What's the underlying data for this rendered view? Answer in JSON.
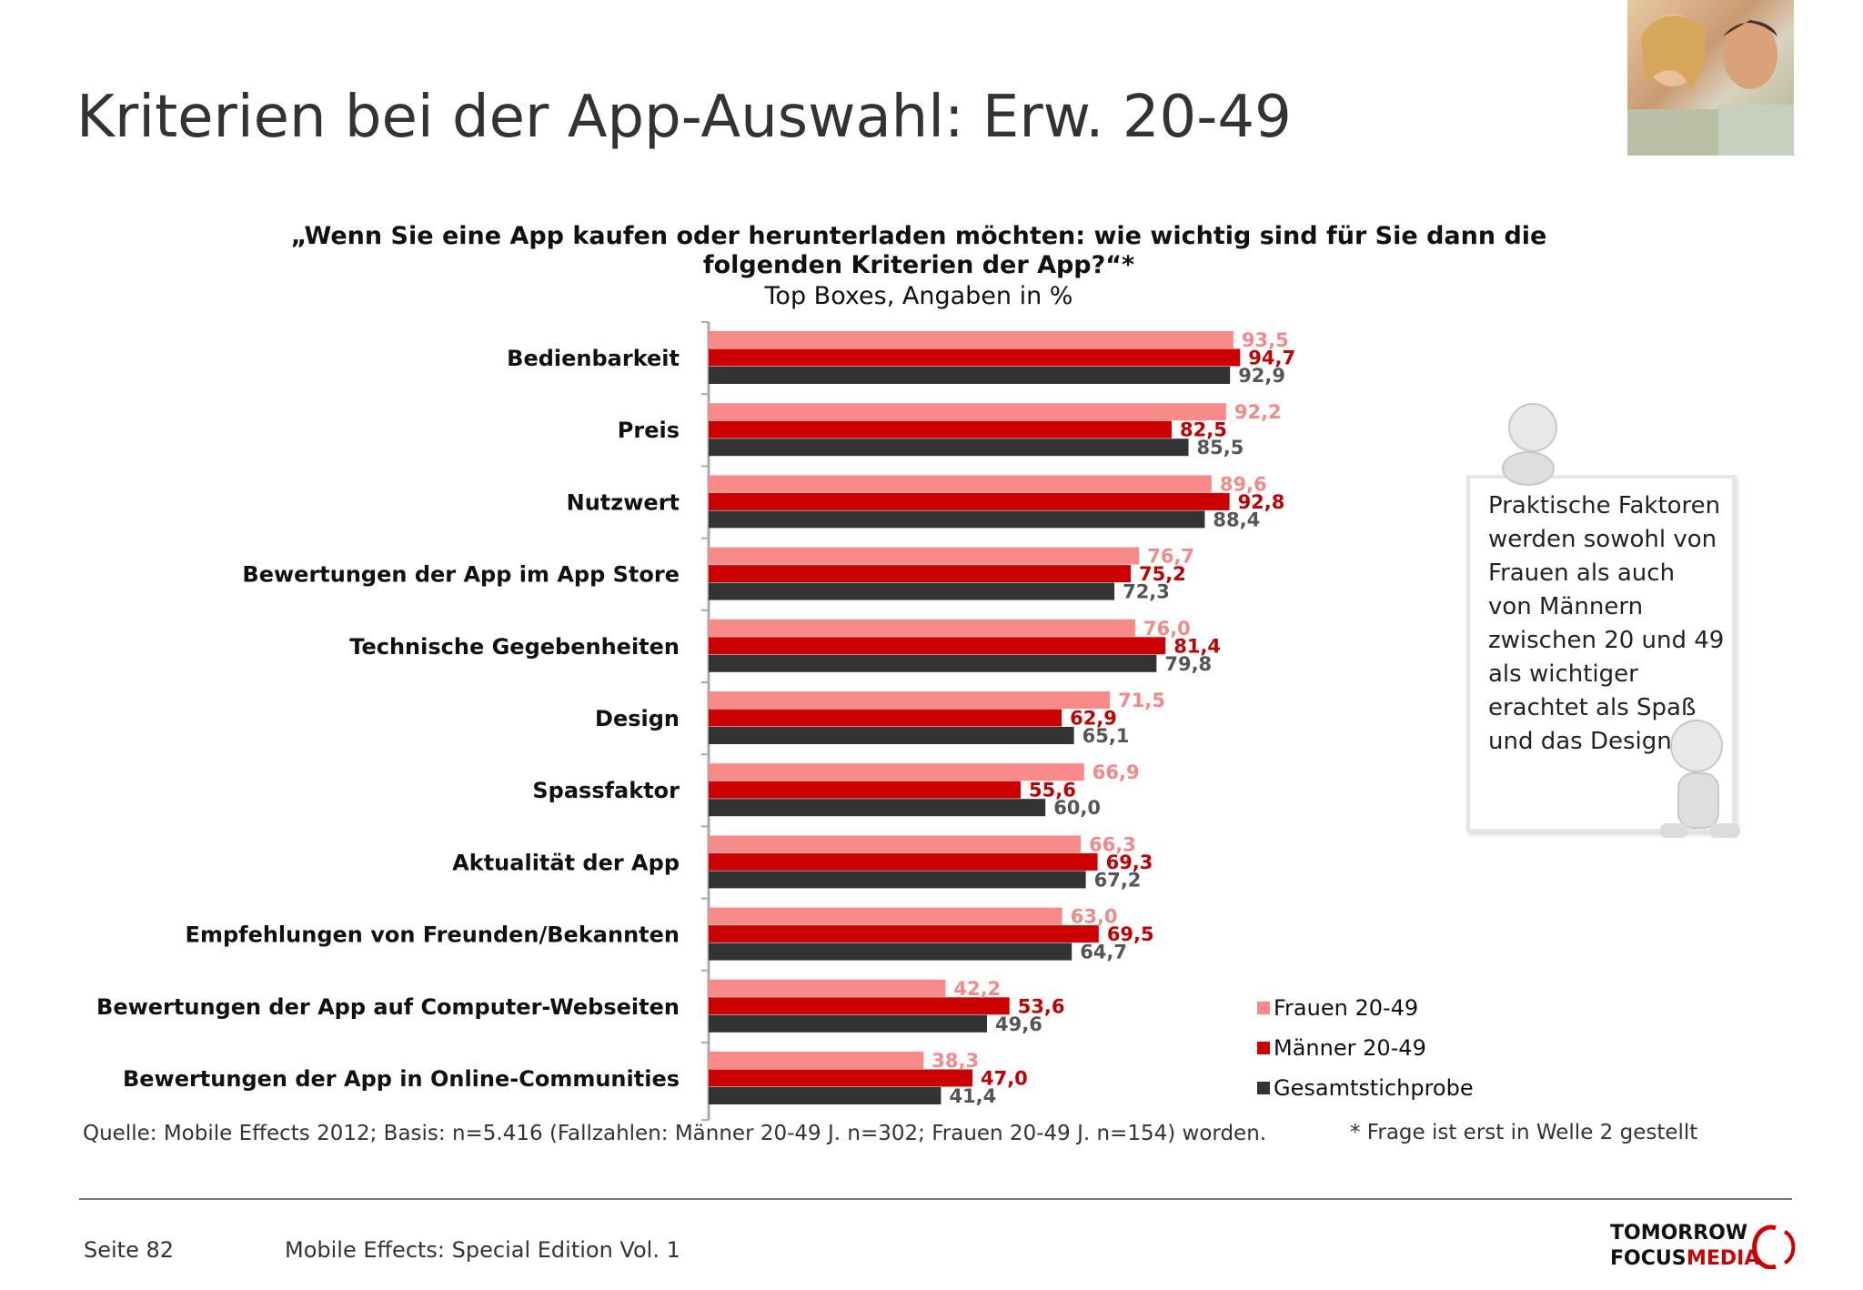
{
  "title": "Kriterien bei der App-Auswahl: Erw. 20-49",
  "question": "„Wenn Sie eine App kaufen oder herunterladen möchten: wie wichtig sind für Sie dann die folgenden Kriterien der App?“*",
  "subtitle": "Top Boxes, Angaben in %",
  "colors": {
    "frauen": "#f88a8a",
    "maenner": "#cc0000",
    "gesamt": "#333333",
    "frauen_label": "#f28a8a",
    "maenner_label": "#c00000",
    "gesamt_label": "#555555"
  },
  "chart_data": {
    "type": "bar",
    "orientation": "horizontal",
    "categories": [
      "Bedienbarkeit",
      "Preis",
      "Nutzwert",
      "Bewertungen der App im App Store",
      "Technische Gegebenheiten",
      "Design",
      "Spassfaktor",
      "Aktualität der App",
      "Empfehlungen von Freunden/Bekannten",
      "Bewertungen der App auf Computer-Webseiten",
      "Bewertungen der App in Online-Communities"
    ],
    "series": [
      {
        "name": "Frauen 20-49",
        "values": [
          93.5,
          92.2,
          89.6,
          76.7,
          76.0,
          71.5,
          66.9,
          66.3,
          63.0,
          42.2,
          38.3
        ],
        "labels": [
          "93,5",
          "92,2",
          "89,6",
          "76,7",
          "76,0",
          "71,5",
          "66,9",
          "66,3",
          "63,0",
          "42,2",
          "38,3"
        ]
      },
      {
        "name": "Männer 20-49",
        "values": [
          94.7,
          82.5,
          92.8,
          75.2,
          81.4,
          62.9,
          55.6,
          69.3,
          69.5,
          53.6,
          47.0
        ],
        "labels": [
          "94,7",
          "82,5",
          "92,8",
          "75,2",
          "81,4",
          "62,9",
          "55,6",
          "69,3",
          "69,5",
          "53,6",
          "47,0"
        ]
      },
      {
        "name": "Gesamtstichprobe",
        "values": [
          92.9,
          85.5,
          88.4,
          72.3,
          79.8,
          65.1,
          60.0,
          67.2,
          64.7,
          49.6,
          41.4
        ],
        "labels": [
          "92,9",
          "85,5",
          "88,4",
          "72,3",
          "79,8",
          "65,1",
          "60,0",
          "67,2",
          "64,7",
          "49,6",
          "41,4"
        ]
      }
    ],
    "xlim": [
      0,
      100
    ],
    "legend": "bottom-right",
    "grid": false
  },
  "note": "Praktische Faktoren werden sowohl von Frauen als auch von Männern zwischen 20 und 49 als wichtiger erachtet als Spaß und das Design!",
  "source": "Quelle: Mobile Effects 2012; Basis: n=5.416 (Fallzahlen: Männer 20-49 J. n=302; Frauen 20-49 J. n=154) worden.",
  "footnote": "* Frage ist erst in Welle 2 gestellt",
  "footer": {
    "page": "Seite 82",
    "title": "Mobile Effects: Special Edition Vol. 1"
  },
  "logo": {
    "line1": "TOMORROW",
    "line2a": "FOCUS",
    "line2b": "MEDIA"
  }
}
